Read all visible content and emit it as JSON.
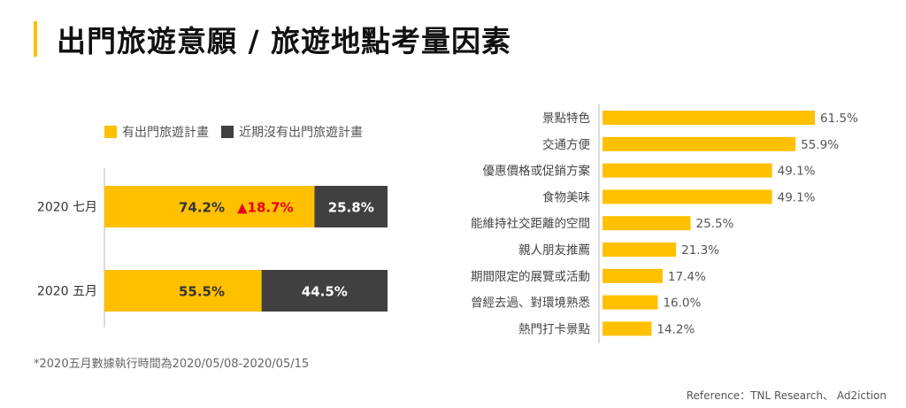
{
  "title": "出門旅遊意願 / 旅遊地點考量因素",
  "colors": {
    "accent": "#FFC000",
    "dark": "#404040",
    "up": "#E60012"
  },
  "chart_data": [
    {
      "type": "bar",
      "orientation": "horizontal-stacked",
      "categories": [
        "2020 七月",
        "2020 五月"
      ],
      "series": [
        {
          "name": "有出門旅遊計畫",
          "values": [
            74.2,
            55.5
          ],
          "labels": [
            "74.2%",
            "55.5%"
          ]
        },
        {
          "name": "近期沒有出門旅遊計畫",
          "values": [
            25.8,
            44.5
          ],
          "labels": [
            "25.8%",
            "44.5%"
          ]
        }
      ],
      "annotation": "▲18.7%",
      "xlim": [
        0,
        100
      ],
      "legend": "top"
    },
    {
      "type": "bar",
      "orientation": "horizontal",
      "categories": [
        "景點特色",
        "交通方便",
        "優惠價格或促銷方案",
        "食物美味",
        "能維持社交距離的空間",
        "親人朋友推薦",
        "期間限定的展覽或活動",
        "曾經去過、對環境熟悉",
        "熱門打卡景點"
      ],
      "values": [
        61.5,
        55.9,
        49.1,
        49.1,
        25.5,
        21.3,
        17.4,
        16.0,
        14.2
      ],
      "labels": [
        "61.5%",
        "55.9%",
        "49.1%",
        "49.1%",
        "25.5%",
        "21.3%",
        "17.4%",
        "16.0%",
        "14.2%"
      ]
    }
  ],
  "note": "*2020五月數據執行時間為2020/05/08-2020/05/15",
  "reference": "Reference：TNL Research、 Ad2iction"
}
